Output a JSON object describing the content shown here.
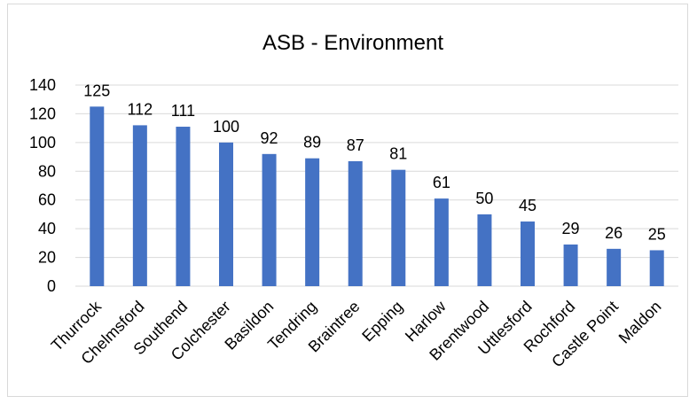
{
  "chart_data": {
    "type": "bar",
    "title": "ASB - Environment",
    "xlabel": "",
    "ylabel": "",
    "categories": [
      "Thurrock",
      "Chelmsford",
      "Southend",
      "Colchester",
      "Basildon",
      "Tendring",
      "Braintree",
      "Epping",
      "Harlow",
      "Brentwood",
      "Uttlesford",
      "Rochford",
      "Castle Point",
      "Maldon"
    ],
    "values": [
      125,
      112,
      111,
      100,
      92,
      89,
      87,
      81,
      61,
      50,
      45,
      29,
      26,
      25
    ],
    "ylim": [
      0,
      140
    ],
    "yticks": [
      "0",
      "20",
      "40",
      "60",
      "80",
      "100",
      "120",
      "140"
    ],
    "grid": true,
    "legend": "none",
    "bar_color": "#4472c4",
    "grid_color": "#d9d9d9"
  }
}
